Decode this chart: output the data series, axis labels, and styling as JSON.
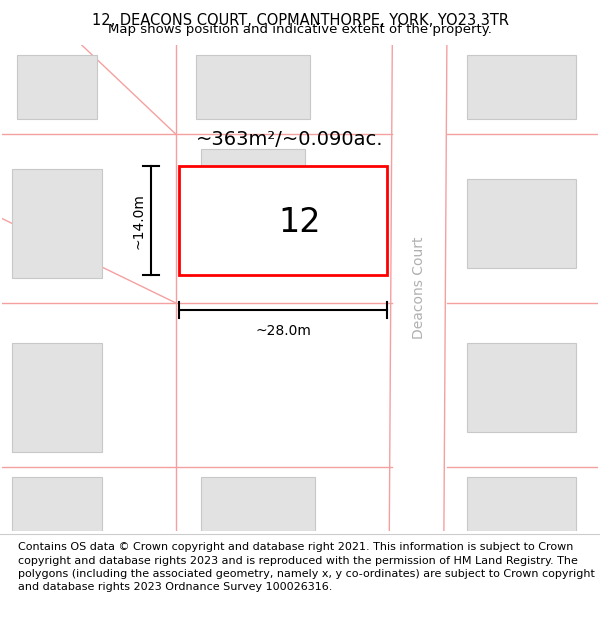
{
  "title_line1": "12, DEACONS COURT, COPMANTHORPE, YORK, YO23 3TR",
  "title_line2": "Map shows position and indicative extent of the property.",
  "footer_text": "Contains OS data © Crown copyright and database right 2021. This information is subject to Crown copyright and database rights 2023 and is reproduced with the permission of HM Land Registry. The polygons (including the associated geometry, namely x, y co-ordinates) are subject to Crown copyright and database rights 2023 Ordnance Survey 100026316.",
  "background_color": "#ffffff",
  "map_background": "#f7f7f7",
  "building_fill": "#e2e2e2",
  "building_outline": "#c8c8c8",
  "road_line_color": "#f5a0a0",
  "highlight_rect_color": "#ff0000",
  "street_label": "Deacons Court",
  "area_label": "~363m²/~0.090ac.",
  "number_label": "12",
  "dim_width_label": "~28.0m",
  "dim_height_label": "~14.0m",
  "title_fontsize": 10.5,
  "subtitle_fontsize": 9.5,
  "footer_fontsize": 8.0,
  "area_label_fontsize": 14,
  "number_fontsize": 24,
  "street_fontsize": 10,
  "dim_fontsize": 10
}
